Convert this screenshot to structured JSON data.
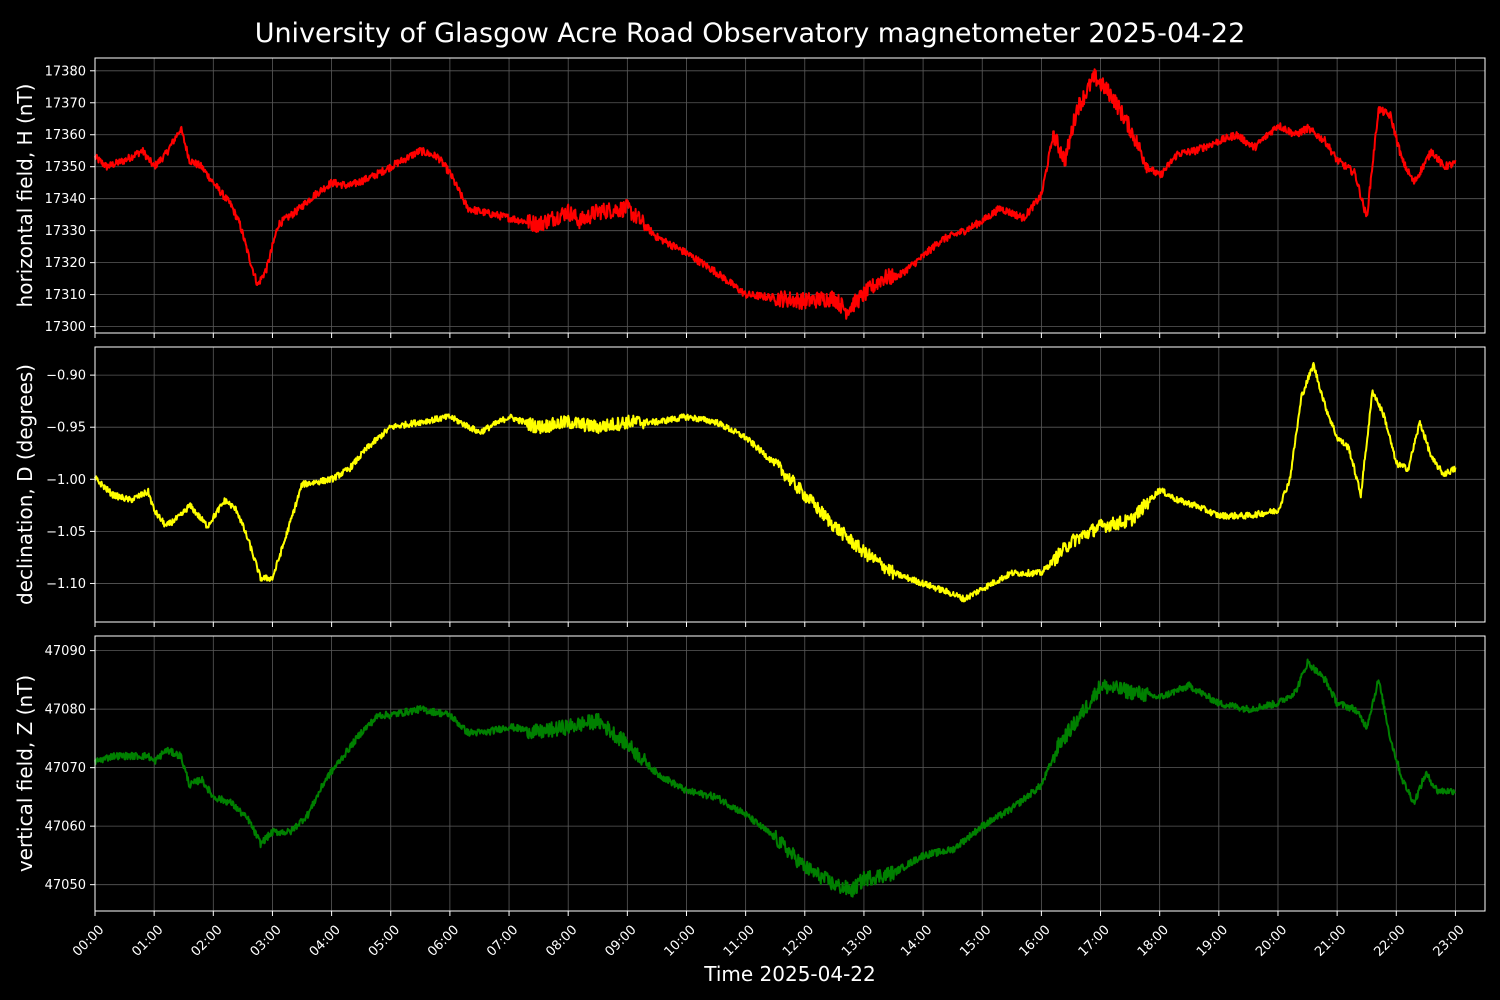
{
  "chart_data": {
    "type": "line",
    "title": "University of Glasgow Acre Road Observatory magnetometer 2025-04-22",
    "xlabel": "Time 2025-04-22",
    "x_ticks": [
      "00:00",
      "01:00",
      "02:00",
      "03:00",
      "04:00",
      "05:00",
      "06:00",
      "07:00",
      "08:00",
      "09:00",
      "10:00",
      "11:00",
      "12:00",
      "13:00",
      "14:00",
      "15:00",
      "16:00",
      "17:00",
      "18:00",
      "19:00",
      "20:00",
      "21:00",
      "22:00",
      "23:00"
    ],
    "x_range_hours": [
      0,
      23.5
    ],
    "grid": true,
    "panels": [
      {
        "ylabel": "horizontal field, H (nT)",
        "color": "#ff0000",
        "ylim": [
          17298,
          17384
        ],
        "yticks": [
          17300,
          17310,
          17320,
          17330,
          17340,
          17350,
          17360,
          17370,
          17380
        ],
        "ytick_labels": [
          "17300",
          "17310",
          "17320",
          "17330",
          "17340",
          "17350",
          "17360",
          "17370",
          "17380"
        ],
        "noise": 1.2,
        "series": {
          "name": "H",
          "x_hours": [
            0,
            0.2,
            0.5,
            0.8,
            1.0,
            1.2,
            1.45,
            1.6,
            1.8,
            2.0,
            2.3,
            2.45,
            2.6,
            2.75,
            2.9,
            3.1,
            3.4,
            3.7,
            4.0,
            4.3,
            4.7,
            5.0,
            5.2,
            5.5,
            5.8,
            6.0,
            6.3,
            6.5,
            7.0,
            7.5,
            8.0,
            8.2,
            8.5,
            9.0,
            9.5,
            10.0,
            10.5,
            11.0,
            11.5,
            12.0,
            12.5,
            12.7,
            13.0,
            13.3,
            13.6,
            14.0,
            14.3,
            14.7,
            15.0,
            15.3,
            15.7,
            16.0,
            16.2,
            16.4,
            16.6,
            16.9,
            17.2,
            17.5,
            17.8,
            18.0,
            18.3,
            18.6,
            19.0,
            19.3,
            19.6,
            20.0,
            20.3,
            20.5,
            20.8,
            21.0,
            21.3,
            21.5,
            21.7,
            21.9,
            22.1,
            22.3,
            22.6,
            22.8,
            23.0
          ],
          "values": [
            17353,
            17350,
            17352,
            17355,
            17350,
            17354,
            17362,
            17352,
            17350,
            17345,
            17338,
            17332,
            17322,
            17313,
            17318,
            17332,
            17336,
            17341,
            17345,
            17344,
            17347,
            17350,
            17352,
            17355,
            17353,
            17348,
            17337,
            17336,
            17334,
            17332,
            17336,
            17333,
            17336,
            17337,
            17328,
            17323,
            17317,
            17310,
            17309,
            17308,
            17309,
            17305,
            17310,
            17315,
            17316,
            17322,
            17327,
            17330,
            17333,
            17337,
            17334,
            17341,
            17360,
            17352,
            17368,
            17378,
            17372,
            17362,
            17350,
            17347,
            17354,
            17355,
            17358,
            17360,
            17356,
            17363,
            17360,
            17362,
            17358,
            17352,
            17348,
            17334,
            17368,
            17366,
            17352,
            17345,
            17355,
            17350,
            17351
          ]
        }
      },
      {
        "ylabel": "declination, D (degrees)",
        "color": "#ffff00",
        "ylim": [
          -1.137,
          -0.873
        ],
        "yticks": [
          -1.1,
          -1.05,
          -1.0,
          -0.95,
          -0.9
        ],
        "ytick_labels": [
          "−1.10",
          "−1.05",
          "−1.00",
          "−0.95",
          "−0.90"
        ],
        "noise": 0.003,
        "series": {
          "name": "D",
          "x_hours": [
            0,
            0.3,
            0.6,
            0.9,
            1.0,
            1.2,
            1.45,
            1.6,
            1.9,
            2.2,
            2.4,
            2.6,
            2.8,
            3.0,
            3.2,
            3.5,
            4.0,
            4.3,
            4.6,
            5.0,
            5.5,
            6.0,
            6.5,
            7.0,
            7.5,
            8.0,
            8.5,
            9.0,
            9.5,
            10.0,
            10.5,
            11.0,
            11.5,
            12.0,
            12.5,
            13.0,
            13.5,
            14.0,
            14.5,
            14.7,
            15.0,
            15.5,
            16.0,
            16.5,
            17.0,
            17.5,
            18.0,
            18.3,
            18.6,
            19.0,
            19.5,
            20.0,
            20.2,
            20.4,
            20.6,
            20.8,
            21.0,
            21.2,
            21.4,
            21.6,
            21.8,
            22.0,
            22.2,
            22.4,
            22.6,
            22.8,
            23.0
          ],
          "values": [
            -0.999,
            -1.015,
            -1.02,
            -1.012,
            -1.03,
            -1.045,
            -1.035,
            -1.025,
            -1.045,
            -1.02,
            -1.03,
            -1.06,
            -1.095,
            -1.095,
            -1.06,
            -1.005,
            -1.0,
            -0.99,
            -0.97,
            -0.95,
            -0.945,
            -0.94,
            -0.955,
            -0.94,
            -0.95,
            -0.945,
            -0.95,
            -0.945,
            -0.945,
            -0.94,
            -0.945,
            -0.96,
            -0.985,
            -1.015,
            -1.045,
            -1.07,
            -1.09,
            -1.1,
            -1.11,
            -1.115,
            -1.105,
            -1.09,
            -1.09,
            -1.06,
            -1.045,
            -1.04,
            -1.01,
            -1.02,
            -1.025,
            -1.035,
            -1.035,
            -1.03,
            -1.0,
            -0.92,
            -0.89,
            -0.93,
            -0.96,
            -0.97,
            -1.015,
            -0.915,
            -0.94,
            -0.985,
            -0.99,
            -0.945,
            -0.98,
            -0.995,
            -0.99
          ]
        }
      },
      {
        "ylabel": "vertical field, Z (nT)",
        "color": "#008000",
        "ylim": [
          47045.5,
          47092.5
        ],
        "yticks": [
          47050,
          47060,
          47070,
          47080,
          47090
        ],
        "ytick_labels": [
          "47050",
          "47060",
          "47070",
          "47080",
          "47090"
        ],
        "noise": 0.6,
        "series": {
          "name": "Z",
          "x_hours": [
            0,
            0.3,
            0.6,
            0.9,
            1.0,
            1.2,
            1.45,
            1.6,
            1.8,
            2.0,
            2.3,
            2.5,
            2.6,
            2.8,
            3.0,
            3.3,
            3.6,
            3.9,
            4.2,
            4.5,
            4.8,
            5.0,
            5.5,
            6.0,
            6.3,
            6.6,
            7.0,
            7.5,
            8.0,
            8.5,
            9.0,
            9.5,
            10.0,
            10.5,
            11.0,
            11.5,
            12.0,
            12.5,
            12.8,
            13.0,
            13.5,
            14.0,
            14.5,
            15.0,
            15.5,
            16.0,
            16.3,
            16.6,
            17.0,
            17.5,
            18.0,
            18.5,
            19.0,
            19.5,
            20.0,
            20.3,
            20.5,
            20.8,
            21.0,
            21.3,
            21.5,
            21.7,
            21.9,
            22.1,
            22.3,
            22.5,
            22.7,
            23.0
          ],
          "values": [
            47071,
            47072,
            47072,
            47072,
            47071,
            47073,
            47072,
            47067,
            47068,
            47065,
            47064,
            47062,
            47061,
            47057,
            47059,
            47059,
            47062,
            47068,
            47072,
            47076,
            47079,
            47079,
            47080,
            47079,
            47076,
            47076,
            47077,
            47076,
            47077,
            47078,
            47074,
            47069,
            47066,
            47065,
            47062,
            47058,
            47053,
            47050,
            47049,
            47051,
            47052,
            47055,
            47056,
            47060,
            47063,
            47067,
            47074,
            47078,
            47084,
            47083,
            47082,
            47084,
            47081,
            47080,
            47081,
            47083,
            47088,
            47085,
            47081,
            47080,
            47077,
            47085,
            47075,
            47068,
            47064,
            47069,
            47066,
            47066
          ]
        }
      }
    ]
  }
}
